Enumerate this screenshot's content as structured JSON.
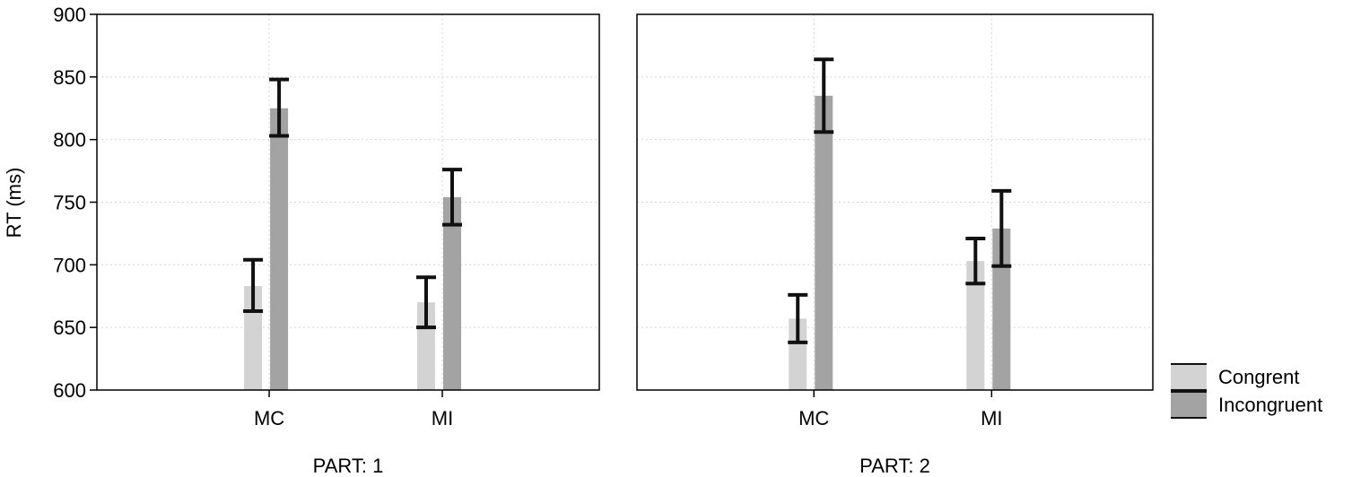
{
  "chart_data": {
    "type": "bar",
    "ylabel": "RT (ms)",
    "ylim": [
      600,
      900
    ],
    "yticks": [
      "900",
      "850",
      "800",
      "750",
      "700",
      "650",
      "600"
    ],
    "grid": true,
    "legend_position": "right",
    "categories": [
      "MC",
      "MI"
    ],
    "panels": [
      {
        "title": "PART: 1",
        "series": [
          {
            "name": "Congrent",
            "color": "#d3d3d3",
            "values": [
              683,
              670
            ],
            "err_low": [
              663,
              650
            ],
            "err_high": [
              704,
              690
            ]
          },
          {
            "name": "Incongruent",
            "color": "#a3a3a3",
            "values": [
              825,
              754
            ],
            "err_low": [
              803,
              732
            ],
            "err_high": [
              848,
              776
            ]
          }
        ]
      },
      {
        "title": "PART: 2",
        "series": [
          {
            "name": "Congrent",
            "color": "#d3d3d3",
            "values": [
              657,
              703
            ],
            "err_low": [
              638,
              685
            ],
            "err_high": [
              676,
              721
            ]
          },
          {
            "name": "Incongruent",
            "color": "#a3a3a3",
            "values": [
              835,
              729
            ],
            "err_low": [
              806,
              699
            ],
            "err_high": [
              864,
              759
            ]
          }
        ]
      }
    ],
    "legend": [
      {
        "name": "Congrent",
        "color": "#d3d3d3"
      },
      {
        "name": "Incongruent",
        "color": "#a3a3a3"
      }
    ]
  }
}
